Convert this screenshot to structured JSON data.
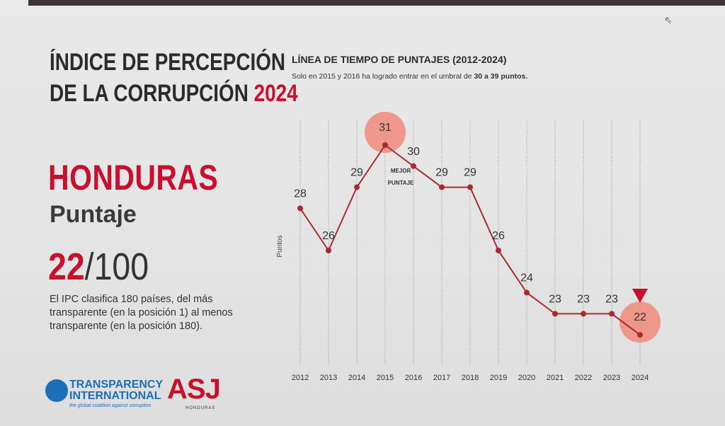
{
  "header": {
    "title_line1": "ÍNDICE DE PERCEPCIÓN",
    "title_line2": "DE LA CORRUPCIÓN",
    "title_year": "2024"
  },
  "country": {
    "name": "HONDURAS",
    "score_label": "Puntaje",
    "score": "22",
    "score_total": "/100",
    "description": "El IPC clasifica 180 países, del más transparente (en la posición 1) al menos transparente (en la posición 180)."
  },
  "logos": {
    "ti_name_line1": "TRANSPARENCY",
    "ti_name_line2": "INTERNATIONAL",
    "ti_tagline": "the global coalition against corruption",
    "asj_name": "ASJ",
    "asj_sub": "HONDURAS"
  },
  "chart_header": {
    "title": "LÍNEA DE TIEMPO DE PUNTAJES (2012-2024)",
    "subtitle_prefix": "Solo en 2015 y 2016 ha logrado entrar en el umbral de",
    "subtitle_bold": "30 a 39 puntos."
  },
  "colors": {
    "accent": "#c8102e",
    "line": "#a82a32",
    "highlight": "#f08a7a",
    "grid": "#9a9a9a"
  },
  "chart_data": {
    "type": "line",
    "title": "LÍNEA DE TIEMPO DE PUNTAJES (2012-2024)",
    "ylabel": "Puntos",
    "xlabel": "",
    "categories": [
      "2012",
      "2013",
      "2014",
      "2015",
      "2016",
      "2017",
      "2018",
      "2019",
      "2020",
      "2021",
      "2022",
      "2023",
      "2024"
    ],
    "values": [
      28,
      26,
      29,
      31,
      30,
      29,
      29,
      26,
      24,
      23,
      23,
      23,
      22
    ],
    "ylim": [
      21,
      33
    ],
    "grid": "vertical",
    "highlighted_years": [
      "2015",
      "2024"
    ],
    "annotation": {
      "category": "2016",
      "text_line1": "MEJOR",
      "text_line2": "PUNTAJE"
    },
    "marker_indicator": {
      "category": "2024",
      "shape": "down-triangle"
    }
  }
}
